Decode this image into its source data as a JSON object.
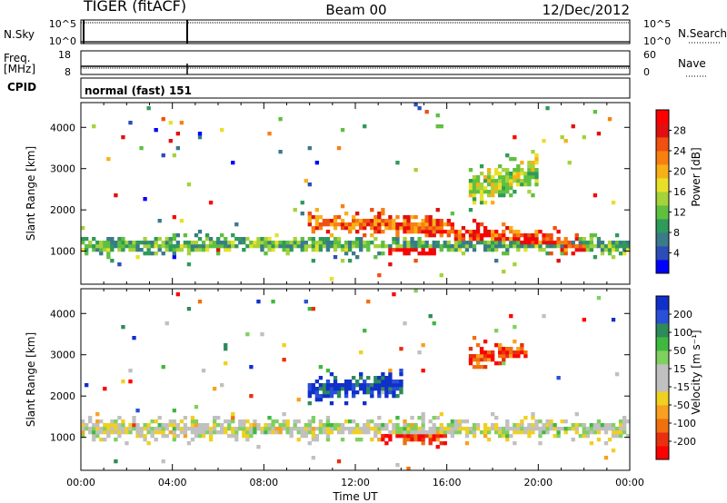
{
  "header": {
    "radar": "TIGER (fitACF)",
    "beam": "Beam 00",
    "date": "12/Dec/2012"
  },
  "status_panels": {
    "nsky_label": "N.Sky",
    "nsky_ticks": [
      "10^5",
      "10^0"
    ],
    "nsearch_label": "N.Search",
    "nsearch_ticks": [
      "10^5",
      "10^0"
    ],
    "freq_label_1": "Freq.",
    "freq_label_2": "[MHz]",
    "freq_ticks": [
      "18",
      "8"
    ],
    "nave_label": "Nave",
    "nave_ticks": [
      "60",
      "0"
    ],
    "cpid_label": "CPID",
    "cpid_text": "normal (fast) 151"
  },
  "chart_data": [
    {
      "type": "heatmap",
      "name": "power",
      "ylabel": "Slant Range [km]",
      "ylim": [
        200,
        4600
      ],
      "yticks": [
        "1000",
        "2000",
        "3000",
        "4000"
      ],
      "xlim_hours": [
        0,
        24
      ],
      "colorbar": {
        "label": "Power [dB]",
        "ticks": [
          "4",
          "8",
          "12",
          "16",
          "20",
          "24",
          "28"
        ],
        "colors": [
          "#0000ff",
          "#2a4db8",
          "#3a7a8a",
          "#2f9a5a",
          "#5fc040",
          "#a6d23a",
          "#e8e028",
          "#f8b018",
          "#f88010",
          "#f05010",
          "#e01010",
          "#ff0000"
        ]
      },
      "echo_bands": [
        {
          "t0": 0.0,
          "t1": 24.0,
          "r_start": 1150,
          "r_end": 1150,
          "width": 200,
          "level": 0.35
        },
        {
          "t0": 10.0,
          "t1": 16.0,
          "r_start": 1700,
          "r_end": 1600,
          "width": 250,
          "level": 0.75
        },
        {
          "t0": 14.0,
          "t1": 22.0,
          "r_start": 1650,
          "r_end": 1100,
          "width": 250,
          "level": 0.8
        },
        {
          "t0": 13.5,
          "t1": 15.5,
          "r_start": 1050,
          "r_end": 1000,
          "width": 150,
          "level": 0.98
        },
        {
          "t0": 17.0,
          "t1": 20.0,
          "r_start": 2500,
          "r_end": 2900,
          "width": 400,
          "level": 0.45
        }
      ]
    },
    {
      "type": "heatmap",
      "name": "velocity",
      "ylabel": "Slant Range [km]",
      "ylim": [
        200,
        4600
      ],
      "yticks": [
        "1000",
        "2000",
        "3000",
        "4000"
      ],
      "xlim_hours": [
        0,
        24
      ],
      "xticks": [
        "00:00",
        "04:00",
        "08:00",
        "12:00",
        "16:00",
        "20:00",
        "00:00"
      ],
      "xlabel": "Time UT",
      "colorbar": {
        "label": "Velocity [m s⁻¹]",
        "ticks": [
          "200",
          "100",
          "50",
          "15",
          "-15",
          "-50",
          "-100",
          "-200"
        ],
        "colors": [
          "#1030c8",
          "#2850d8",
          "#2e8a5a",
          "#40b840",
          "#80d060",
          "#c0c0c0",
          "#c0c0c0",
          "#f0d020",
          "#f8a020",
          "#f07010",
          "#e83010",
          "#ff0000"
        ]
      },
      "echo_bands": [
        {
          "t0": 0.0,
          "t1": 24.0,
          "r_start": 1200,
          "r_end": 1200,
          "width": 250,
          "level": 0.5
        },
        {
          "t0": 13.0,
          "t1": 16.0,
          "r_start": 1050,
          "r_end": 1050,
          "width": 200,
          "level": 0.9
        },
        {
          "t0": 10.0,
          "t1": 14.0,
          "r_start": 2100,
          "r_end": 2300,
          "width": 300,
          "level": 0.05
        },
        {
          "t0": 17.0,
          "t1": 19.5,
          "r_start": 2900,
          "r_end": 3100,
          "width": 250,
          "level": 0.85
        }
      ]
    }
  ]
}
